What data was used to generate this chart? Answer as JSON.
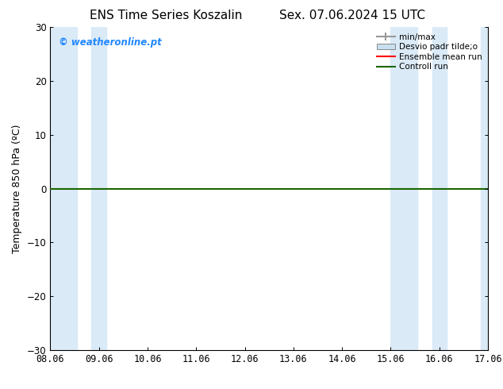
{
  "title_left": "ENS Time Series Koszalin",
  "title_right": "Sex. 07.06.2024 15 UTC",
  "ylabel": "Temperature 850 hPa (ºC)",
  "ylim": [
    -30,
    30
  ],
  "yticks": [
    -30,
    -20,
    -10,
    0,
    10,
    20,
    30
  ],
  "xlim": [
    0,
    9
  ],
  "xtick_labels": [
    "08.06",
    "09.06",
    "10.06",
    "11.06",
    "12.06",
    "13.06",
    "14.06",
    "15.06",
    "16.06",
    "17.06"
  ],
  "xtick_positions": [
    0,
    1,
    2,
    3,
    4,
    5,
    6,
    7,
    8,
    9
  ],
  "shaded_bands": [
    [
      0.0,
      0.55
    ],
    [
      0.85,
      1.15
    ],
    [
      7.0,
      7.55
    ],
    [
      7.85,
      8.15
    ],
    [
      8.85,
      9.0
    ]
  ],
  "band_color": "#daeaf7",
  "watermark": "© weatheronline.pt",
  "watermark_color": "#2288ff",
  "bg_color": "#ffffff",
  "line_red": "#ff0000",
  "line_green": "#1a6600",
  "legend_items": [
    {
      "label": "min/max",
      "color": "#999999",
      "lw": 2
    },
    {
      "label": "Desvio padr tilde;o",
      "color": "#c8dff0",
      "lw": 8
    },
    {
      "label": "Ensemble mean run",
      "color": "#ff0000",
      "lw": 1.5
    },
    {
      "label": "Controll run",
      "color": "#1a6600",
      "lw": 1.5
    }
  ],
  "title_fontsize": 11,
  "ylabel_fontsize": 9,
  "tick_fontsize": 8.5,
  "watermark_fontsize": 8.5
}
